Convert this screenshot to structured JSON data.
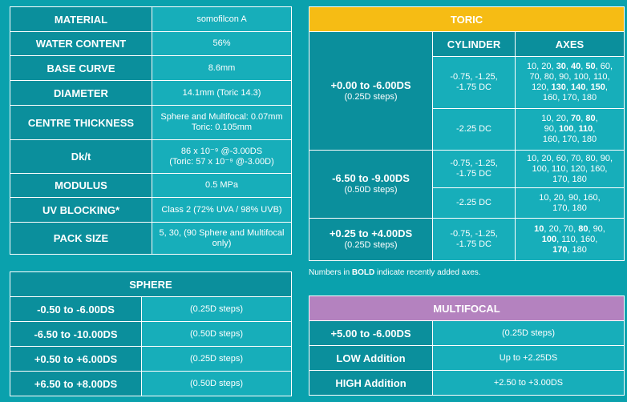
{
  "spec": {
    "rows": [
      {
        "label": "MATERIAL",
        "value": "somofilcon A"
      },
      {
        "label": "WATER CONTENT",
        "value": "56%"
      },
      {
        "label": "BASE CURVE",
        "value": "8.6mm"
      },
      {
        "label": "DIAMETER",
        "value": "14.1mm (Toric 14.3)"
      },
      {
        "label": "CENTRE THICKNESS",
        "value": "Sphere and Multifocal: 0.07mm",
        "value2": "Toric: 0.105mm"
      },
      {
        "label": "Dk/t",
        "value": "86 x 10⁻⁹ @-3.00DS",
        "value2": "(Toric: 57 x 10⁻⁹ @-3.00D)"
      },
      {
        "label": "MODULUS",
        "value": "0.5 MPa"
      },
      {
        "label": "UV BLOCKING*",
        "value": "Class 2 (72% UVA / 98% UVB)"
      },
      {
        "label": "PACK SIZE",
        "value": "5, 30, (90 Sphere and Multifocal only)"
      }
    ]
  },
  "toric": {
    "title": "TORIC",
    "col_cylinder": "CYLINDER",
    "col_axes": "AXES",
    "group1": {
      "range": "+0.00 to -6.00DS",
      "steps": "(0.25D steps)"
    },
    "group2": {
      "range": "-6.50 to -9.00DS",
      "steps": "(0.50D steps)"
    },
    "group3": {
      "range": "+0.25 to +4.00DS",
      "steps": "(0.25D steps)"
    },
    "cyl_a1": "-0.75, -1.25,",
    "cyl_a2": "-1.75 DC",
    "cyl_b": "-2.25 DC",
    "cyl_c1": "-0.75, -1.25,",
    "cyl_c2": "-1.75 DC",
    "cyl_d": "-2.25 DC",
    "cyl_e1": "-0.75, -1.25,",
    "cyl_e2": "-1.75 DC",
    "axes": {
      "a": [
        [
          "10, 20, ",
          false
        ],
        [
          "30",
          true
        ],
        [
          ", ",
          false
        ],
        [
          "40",
          true
        ],
        [
          ", ",
          false
        ],
        [
          "50",
          true
        ],
        [
          ", 60,",
          false
        ],
        [
          "\n70, 80, 90, 100, 110,",
          false
        ],
        [
          "\n120, ",
          false
        ],
        [
          "130",
          true
        ],
        [
          ", ",
          false
        ],
        [
          "140",
          true
        ],
        [
          ", ",
          false
        ],
        [
          "150",
          true
        ],
        [
          ",",
          false
        ],
        [
          "\n160, 170, 180",
          false
        ]
      ],
      "b": [
        [
          "10, 20, ",
          false
        ],
        [
          "70",
          true
        ],
        [
          ", ",
          false
        ],
        [
          "80",
          true
        ],
        [
          ",",
          false
        ],
        [
          "\n90, ",
          false
        ],
        [
          "100",
          true
        ],
        [
          ", ",
          false
        ],
        [
          "110",
          true
        ],
        [
          ",",
          false
        ],
        [
          "\n160, 170, 180",
          false
        ]
      ],
      "c": [
        [
          "10, 20, 60, 70, 80, 90,",
          false
        ],
        [
          "\n100, 110, 120, 160,",
          false
        ],
        [
          "\n170, 180",
          false
        ]
      ],
      "d": [
        [
          "10, 20, 90, 160,",
          false
        ],
        [
          "\n170, 180",
          false
        ]
      ],
      "e": [
        [
          "10",
          true
        ],
        [
          ", 20, 70, ",
          false
        ],
        [
          "80",
          true
        ],
        [
          ", 90,",
          false
        ],
        [
          "\n",
          false
        ],
        [
          "100",
          true
        ],
        [
          ", 110, 160,",
          false
        ],
        [
          "\n",
          false
        ],
        [
          "170",
          true
        ],
        [
          ", 180",
          false
        ]
      ]
    }
  },
  "note": {
    "pre": "Numbers in ",
    "bold": "BOLD",
    "post": " indicate recently added axes."
  },
  "sphere": {
    "title": "SPHERE",
    "rows": [
      {
        "label": "-0.50 to -6.00DS",
        "value": "(0.25D steps)"
      },
      {
        "label": "-6.50 to -10.00DS",
        "value": "(0.50D steps)"
      },
      {
        "label": "+0.50 to +6.00DS",
        "value": "(0.25D steps)"
      },
      {
        "label": "+6.50 to +8.00DS",
        "value": "(0.50D steps)"
      }
    ]
  },
  "multifocal": {
    "title": "MULTIFOCAL",
    "rows": [
      {
        "label": "+5.00 to -6.00DS",
        "value": "(0.25D steps)"
      },
      {
        "label": "LOW Addition",
        "value": "Up to +2.25DS"
      },
      {
        "label": "HIGH Addition",
        "value": "+2.50 to +3.00DS"
      }
    ]
  }
}
